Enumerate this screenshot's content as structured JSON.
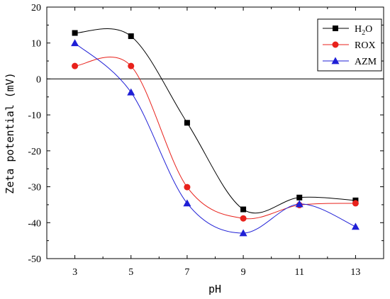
{
  "chart_data": {
    "type": "line",
    "xlabel": "pH",
    "ylabel": "Zeta potential (mV)",
    "x": [
      3,
      5,
      7,
      9,
      11,
      13
    ],
    "xticks": [
      "3",
      "5",
      "7",
      "9",
      "11",
      "13"
    ],
    "xlim": [
      2,
      14
    ],
    "ylim": [
      -50,
      20
    ],
    "yticks": [
      "20",
      "10",
      "0",
      "-10",
      "-20",
      "-30",
      "-40",
      "-50"
    ],
    "zero_line": true,
    "grid": false,
    "legend_position": "top-right",
    "series": [
      {
        "name": "H2O",
        "name_main": "H",
        "name_sub": "2",
        "name_tail": "O",
        "color": "#000000",
        "marker": "square",
        "values": [
          12.8,
          11.9,
          -12.2,
          -36.3,
          -33.0,
          -33.8
        ]
      },
      {
        "name": "ROX",
        "color": "#e8211b",
        "marker": "circle",
        "values": [
          3.6,
          3.6,
          -30.1,
          -38.8,
          -35.1,
          -34.6
        ]
      },
      {
        "name": "AZM",
        "color": "#1f1fd6",
        "marker": "triangle",
        "values": [
          10.0,
          -3.7,
          -34.6,
          -42.9,
          -34.8,
          -41.1
        ]
      }
    ]
  }
}
